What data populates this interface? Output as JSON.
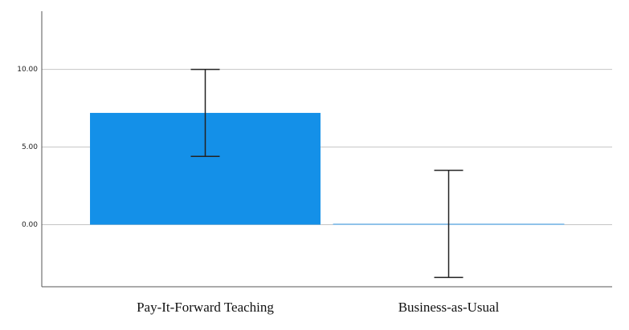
{
  "chart_data": {
    "type": "bar",
    "categories": [
      "Pay-It-Forward Teaching",
      "Business-as-Usual"
    ],
    "values": [
      7.2,
      0.05
    ],
    "errors": [
      2.8,
      3.45
    ],
    "color": "#1490e8",
    "ylim": [
      -4,
      13.75
    ],
    "yticks": [
      {
        "value": 0,
        "label": "0.00"
      },
      {
        "value": 5,
        "label": "5.00"
      },
      {
        "value": 10,
        "label": "10.00"
      }
    ],
    "grid": true
  }
}
